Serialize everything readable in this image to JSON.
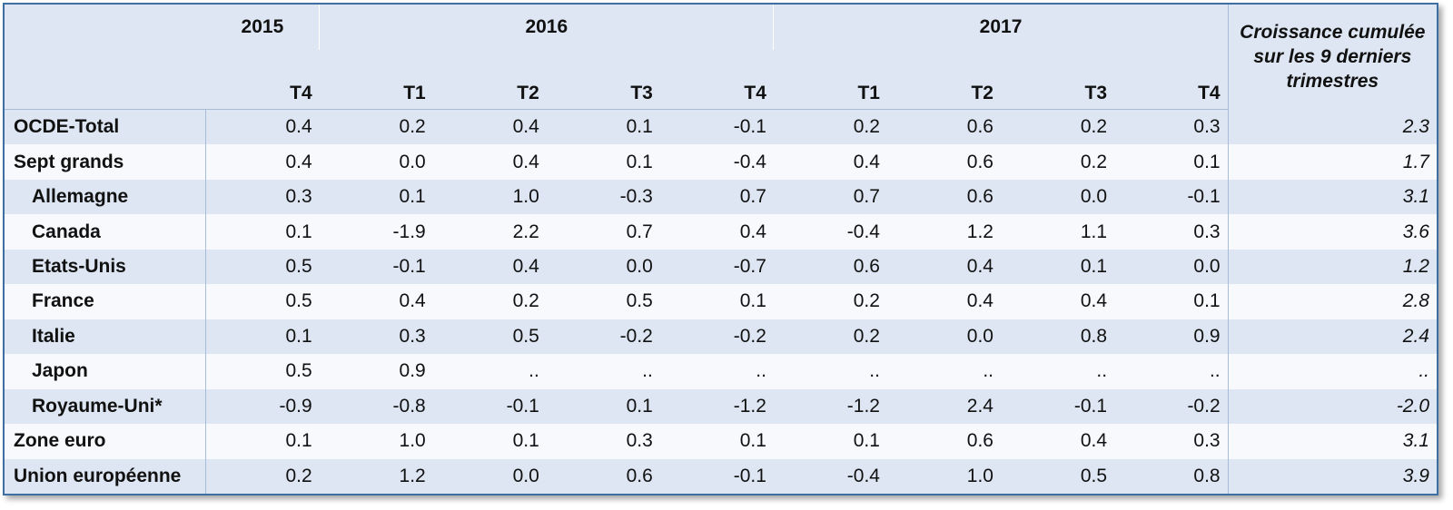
{
  "chart_data": {
    "type": "table",
    "header": {
      "years": [
        {
          "label": "2015",
          "span": 1
        },
        {
          "label": "2016",
          "span": 4
        },
        {
          "label": "2017",
          "span": 4
        }
      ],
      "quarters": [
        "T4",
        "T1",
        "T2",
        "T3",
        "T4",
        "T1",
        "T2",
        "T3",
        "T4"
      ],
      "cumulative_label": "Croissance cumulée sur les 9 derniers trimestres"
    },
    "rows": [
      {
        "label": "OCDE-Total",
        "indent": false,
        "values": [
          "0.4",
          "0.2",
          "0.4",
          "0.1",
          "-0.1",
          "0.2",
          "0.6",
          "0.2",
          "0.3"
        ],
        "cumulative": "2.3"
      },
      {
        "label": "Sept grands",
        "indent": false,
        "values": [
          "0.4",
          "0.0",
          "0.4",
          "0.1",
          "-0.4",
          "0.4",
          "0.6",
          "0.2",
          "0.1"
        ],
        "cumulative": "1.7"
      },
      {
        "label": "Allemagne",
        "indent": true,
        "values": [
          "0.3",
          "0.1",
          "1.0",
          "-0.3",
          "0.7",
          "0.7",
          "0.6",
          "0.0",
          "-0.1"
        ],
        "cumulative": "3.1"
      },
      {
        "label": "Canada",
        "indent": true,
        "values": [
          "0.1",
          "-1.9",
          "2.2",
          "0.7",
          "0.4",
          "-0.4",
          "1.2",
          "1.1",
          "0.3"
        ],
        "cumulative": "3.6"
      },
      {
        "label": "Etats-Unis",
        "indent": true,
        "values": [
          "0.5",
          "-0.1",
          "0.4",
          "0.0",
          "-0.7",
          "0.6",
          "0.4",
          "0.1",
          "0.0"
        ],
        "cumulative": "1.2"
      },
      {
        "label": "France",
        "indent": true,
        "values": [
          "0.5",
          "0.4",
          "0.2",
          "0.5",
          "0.1",
          "0.2",
          "0.4",
          "0.4",
          "0.1"
        ],
        "cumulative": "2.8"
      },
      {
        "label": "Italie",
        "indent": true,
        "values": [
          "0.1",
          "0.3",
          "0.5",
          "-0.2",
          "-0.2",
          "0.2",
          "0.0",
          "0.8",
          "0.9"
        ],
        "cumulative": "2.4"
      },
      {
        "label": "Japon",
        "indent": true,
        "values": [
          "0.5",
          "0.9",
          "..",
          "..",
          "..",
          "..",
          "..",
          "..",
          ".."
        ],
        "cumulative": ".."
      },
      {
        "label": "Royaume-Uni*",
        "indent": true,
        "values": [
          "-0.9",
          "-0.8",
          "-0.1",
          "0.1",
          "-1.2",
          "-1.2",
          "2.4",
          "-0.1",
          "-0.2"
        ],
        "cumulative": "-2.0"
      },
      {
        "label": "Zone euro",
        "indent": false,
        "values": [
          "0.1",
          "1.0",
          "0.1",
          "0.3",
          "0.1",
          "0.1",
          "0.6",
          "0.4",
          "0.3"
        ],
        "cumulative": "3.1"
      },
      {
        "label": "Union européenne",
        "indent": false,
        "values": [
          "0.2",
          "1.2",
          "0.0",
          "0.6",
          "-0.1",
          "-0.4",
          "1.0",
          "0.5",
          "0.8"
        ],
        "cumulative": "3.9"
      }
    ],
    "colors": {
      "band": "#dde6f2",
      "band_alt": "#f7f9fc",
      "border": "#3d6fa3"
    }
  }
}
